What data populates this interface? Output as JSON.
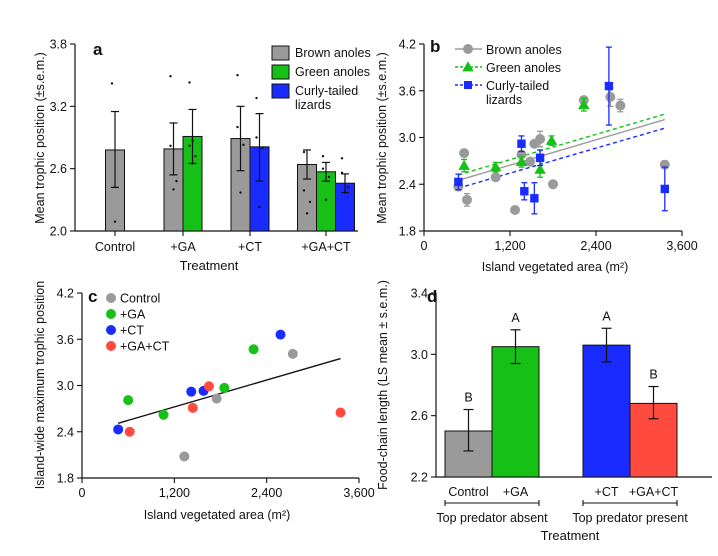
{
  "colors": {
    "gray": "#9a9a9a",
    "green": "#17c017",
    "blue": "#1a2bff",
    "red": "#ff4b3e",
    "black": "#111111"
  },
  "chart_data": [
    {
      "panel": "a",
      "type": "bar",
      "ylabel": "Mean trophic position (±s.e.m.)",
      "xlabel": "Treatment",
      "ylim": [
        2.0,
        3.8
      ],
      "yticks": [
        "2.0",
        "2.6",
        "3.2",
        "3.8"
      ],
      "groups": [
        "Control",
        "+GA",
        "+CT",
        "+GA+CT"
      ],
      "legend": [
        {
          "name": "Brown anoles",
          "color": "#9a9a9a"
        },
        {
          "name": "Green anoles",
          "color": "#17c017"
        },
        {
          "name": "Curly-tailed lizards",
          "color": "#1a2bff"
        }
      ],
      "bars": [
        {
          "group": 0,
          "series": 0,
          "value": 2.78,
          "err": [
            2.42,
            3.15
          ]
        },
        {
          "group": 1,
          "series": 0,
          "value": 2.79,
          "err": [
            2.54,
            3.04
          ]
        },
        {
          "group": 1,
          "series": 1,
          "value": 2.91,
          "err": [
            2.65,
            3.17
          ]
        },
        {
          "group": 2,
          "series": 0,
          "value": 2.89,
          "err": [
            2.58,
            3.2
          ]
        },
        {
          "group": 2,
          "series": 2,
          "value": 2.81,
          "err": [
            2.48,
            3.13
          ]
        },
        {
          "group": 3,
          "series": 0,
          "value": 2.64,
          "err": [
            2.5,
            2.78
          ]
        },
        {
          "group": 3,
          "series": 1,
          "value": 2.57,
          "err": [
            2.48,
            2.66
          ]
        },
        {
          "group": 3,
          "series": 2,
          "value": 2.46,
          "err": [
            2.37,
            2.55
          ]
        }
      ],
      "points": [
        {
          "group": 0,
          "series": 0,
          "values": [
            3.42,
            2.09
          ]
        },
        {
          "group": 1,
          "series": 0,
          "values": [
            3.49,
            2.4,
            2.48,
            2.82
          ]
        },
        {
          "group": 1,
          "series": 1,
          "values": [
            3.43,
            2.65,
            2.72,
            2.82,
            2.87
          ]
        },
        {
          "group": 2,
          "series": 0,
          "values": [
            3.5,
            2.37,
            2.83,
            3.0
          ]
        },
        {
          "group": 2,
          "series": 2,
          "values": [
            3.28,
            2.23,
            2.8,
            2.9
          ]
        },
        {
          "group": 3,
          "series": 0,
          "values": [
            2.76,
            2.17,
            2.28,
            2.39
          ]
        },
        {
          "group": 3,
          "series": 1,
          "values": [
            2.72,
            2.3,
            2.52,
            2.6
          ]
        },
        {
          "group": 3,
          "series": 2,
          "values": [
            2.7,
            2.37,
            2.42,
            2.56
          ]
        }
      ]
    },
    {
      "panel": "b",
      "type": "scatter",
      "ylabel": "Mean trophic position (±s.e.m.)",
      "xlabel": "Island vegetated area (m²)",
      "xlim": [
        0,
        3600
      ],
      "ylim": [
        1.8,
        4.2
      ],
      "xticks": [
        "0",
        "1,200",
        "2,400",
        "3,600"
      ],
      "yticks": [
        "1.8",
        "2.4",
        "3.0",
        "3.6",
        "4.2"
      ],
      "legend": [
        "Brown anoles",
        "Green anoles",
        "Curly-tailed lizards"
      ],
      "series": [
        {
          "name": "Brown anoles",
          "color": "#9a9a9a",
          "marker": "circle",
          "points": [
            {
              "x": 480,
              "y": 2.37,
              "err": [
                2.32,
                2.42
              ]
            },
            {
              "x": 560,
              "y": 2.8,
              "err": [
                2.78,
                2.82
              ]
            },
            {
              "x": 600,
              "y": 2.2,
              "err": [
                2.12,
                2.28
              ]
            },
            {
              "x": 1000,
              "y": 2.49,
              "err": [
                2.47,
                2.51
              ]
            },
            {
              "x": 1270,
              "y": 2.07,
              "err": [
                2.07,
                2.07
              ]
            },
            {
              "x": 1360,
              "y": 2.78,
              "err": [
                2.75,
                2.81
              ]
            },
            {
              "x": 1480,
              "y": 2.69,
              "err": [
                2.67,
                2.71
              ]
            },
            {
              "x": 1540,
              "y": 2.92,
              "err": [
                2.9,
                2.94
              ]
            },
            {
              "x": 1620,
              "y": 2.98,
              "err": [
                2.88,
                3.08
              ]
            },
            {
              "x": 1800,
              "y": 2.4,
              "err": [
                2.4,
                2.4
              ]
            },
            {
              "x": 2230,
              "y": 3.48,
              "err": [
                3.44,
                3.52
              ]
            },
            {
              "x": 2600,
              "y": 3.52,
              "err": [
                3.4,
                3.64
              ]
            },
            {
              "x": 2740,
              "y": 3.41,
              "err": [
                3.33,
                3.49
              ]
            },
            {
              "x": 3360,
              "y": 2.65,
              "err": [
                2.6,
                2.7
              ]
            }
          ]
        },
        {
          "name": "Green anoles",
          "color": "#17c017",
          "marker": "triangle",
          "points": [
            {
              "x": 560,
              "y": 2.64,
              "err": [
                2.56,
                2.72
              ]
            },
            {
              "x": 1000,
              "y": 2.62,
              "err": [
                2.56,
                2.68
              ]
            },
            {
              "x": 1360,
              "y": 2.69,
              "err": [
                2.62,
                2.76
              ]
            },
            {
              "x": 1620,
              "y": 2.59,
              "err": [
                2.49,
                2.69
              ]
            },
            {
              "x": 1780,
              "y": 2.96,
              "err": [
                2.9,
                3.02
              ]
            },
            {
              "x": 2230,
              "y": 3.42,
              "err": [
                3.34,
                3.5
              ]
            }
          ]
        },
        {
          "name": "Curly-tailed lizards",
          "color": "#1a2bff",
          "marker": "square",
          "points": [
            {
              "x": 480,
              "y": 2.43,
              "err": [
                2.33,
                2.53
              ]
            },
            {
              "x": 1360,
              "y": 2.92,
              "err": [
                2.82,
                3.02
              ]
            },
            {
              "x": 1400,
              "y": 2.31,
              "err": [
                2.2,
                2.42
              ]
            },
            {
              "x": 1540,
              "y": 2.22,
              "err": [
                2.02,
                2.42
              ]
            },
            {
              "x": 1620,
              "y": 2.74,
              "err": [
                2.64,
                2.84
              ]
            },
            {
              "x": 2580,
              "y": 3.66,
              "err": [
                3.16,
                4.16
              ]
            },
            {
              "x": 3360,
              "y": 2.34,
              "err": [
                2.06,
                2.62
              ]
            }
          ]
        }
      ],
      "fits": [
        {
          "series": "Brown anoles",
          "style": "solid",
          "from": [
            480,
            2.45
          ],
          "to": [
            3360,
            3.23
          ]
        },
        {
          "series": "Green anoles",
          "style": "dashed",
          "from": [
            480,
            2.52
          ],
          "to": [
            3360,
            3.3
          ]
        },
        {
          "series": "Curly-tailed lizards",
          "style": "dashed",
          "from": [
            480,
            2.35
          ],
          "to": [
            3360,
            3.12
          ]
        }
      ]
    },
    {
      "panel": "c",
      "type": "scatter",
      "ylabel": "Island-wide maximum trophic position",
      "xlabel": "Island vegetated area (m²)",
      "xlim": [
        0,
        3600
      ],
      "ylim": [
        1.8,
        4.2
      ],
      "xticks": [
        "0",
        "1,200",
        "2,400",
        "3,600"
      ],
      "yticks": [
        "1.8",
        "2.4",
        "3.0",
        "3.6",
        "4.2"
      ],
      "legend": [
        "Control",
        "+GA",
        "+CT",
        "+GA+CT"
      ],
      "series": [
        {
          "name": "Control",
          "color": "#9a9a9a",
          "points": [
            {
              "x": 1330,
              "y": 2.08
            },
            {
              "x": 1750,
              "y": 2.83
            },
            {
              "x": 2740,
              "y": 3.41
            }
          ]
        },
        {
          "name": "+GA",
          "color": "#17c017",
          "points": [
            {
              "x": 600,
              "y": 2.81
            },
            {
              "x": 1060,
              "y": 2.62
            },
            {
              "x": 1850,
              "y": 2.97
            },
            {
              "x": 2230,
              "y": 3.47
            }
          ]
        },
        {
          "name": "+CT",
          "color": "#1a2bff",
          "points": [
            {
              "x": 470,
              "y": 2.43
            },
            {
              "x": 1420,
              "y": 2.92
            },
            {
              "x": 1580,
              "y": 2.93
            },
            {
              "x": 2580,
              "y": 3.66
            }
          ]
        },
        {
          "name": "+GA+CT",
          "color": "#ff4b3e",
          "points": [
            {
              "x": 620,
              "y": 2.4
            },
            {
              "x": 1440,
              "y": 2.71
            },
            {
              "x": 1650,
              "y": 2.99
            },
            {
              "x": 3360,
              "y": 2.65
            }
          ]
        }
      ],
      "fit": {
        "from": [
          470,
          2.51
        ],
        "to": [
          3360,
          3.35
        ]
      }
    },
    {
      "panel": "d",
      "type": "bar",
      "ylabel": "Food-chain length (LS mean ± s.e.m.)",
      "xlabel": "Treatment",
      "ylim": [
        2.2,
        3.4
      ],
      "yticks": [
        "2.2",
        "2.6",
        "3.0",
        "3.4"
      ],
      "bars": [
        {
          "category": "Control",
          "value": 2.5,
          "err": [
            2.37,
            2.64
          ],
          "letter": "B",
          "color": "#9a9a9a"
        },
        {
          "category": "+GA",
          "value": 3.05,
          "err": [
            2.94,
            3.16
          ],
          "letter": "A",
          "color": "#17c017"
        },
        {
          "category": "+CT",
          "value": 3.06,
          "err": [
            2.95,
            3.17
          ],
          "letter": "A",
          "color": "#1a2bff"
        },
        {
          "category": "+GA+CT",
          "value": 2.68,
          "err": [
            2.58,
            2.79
          ],
          "letter": "B",
          "color": "#ff4b3e"
        }
      ],
      "brackets": [
        "Top predator absent",
        "Top predator present"
      ]
    }
  ]
}
